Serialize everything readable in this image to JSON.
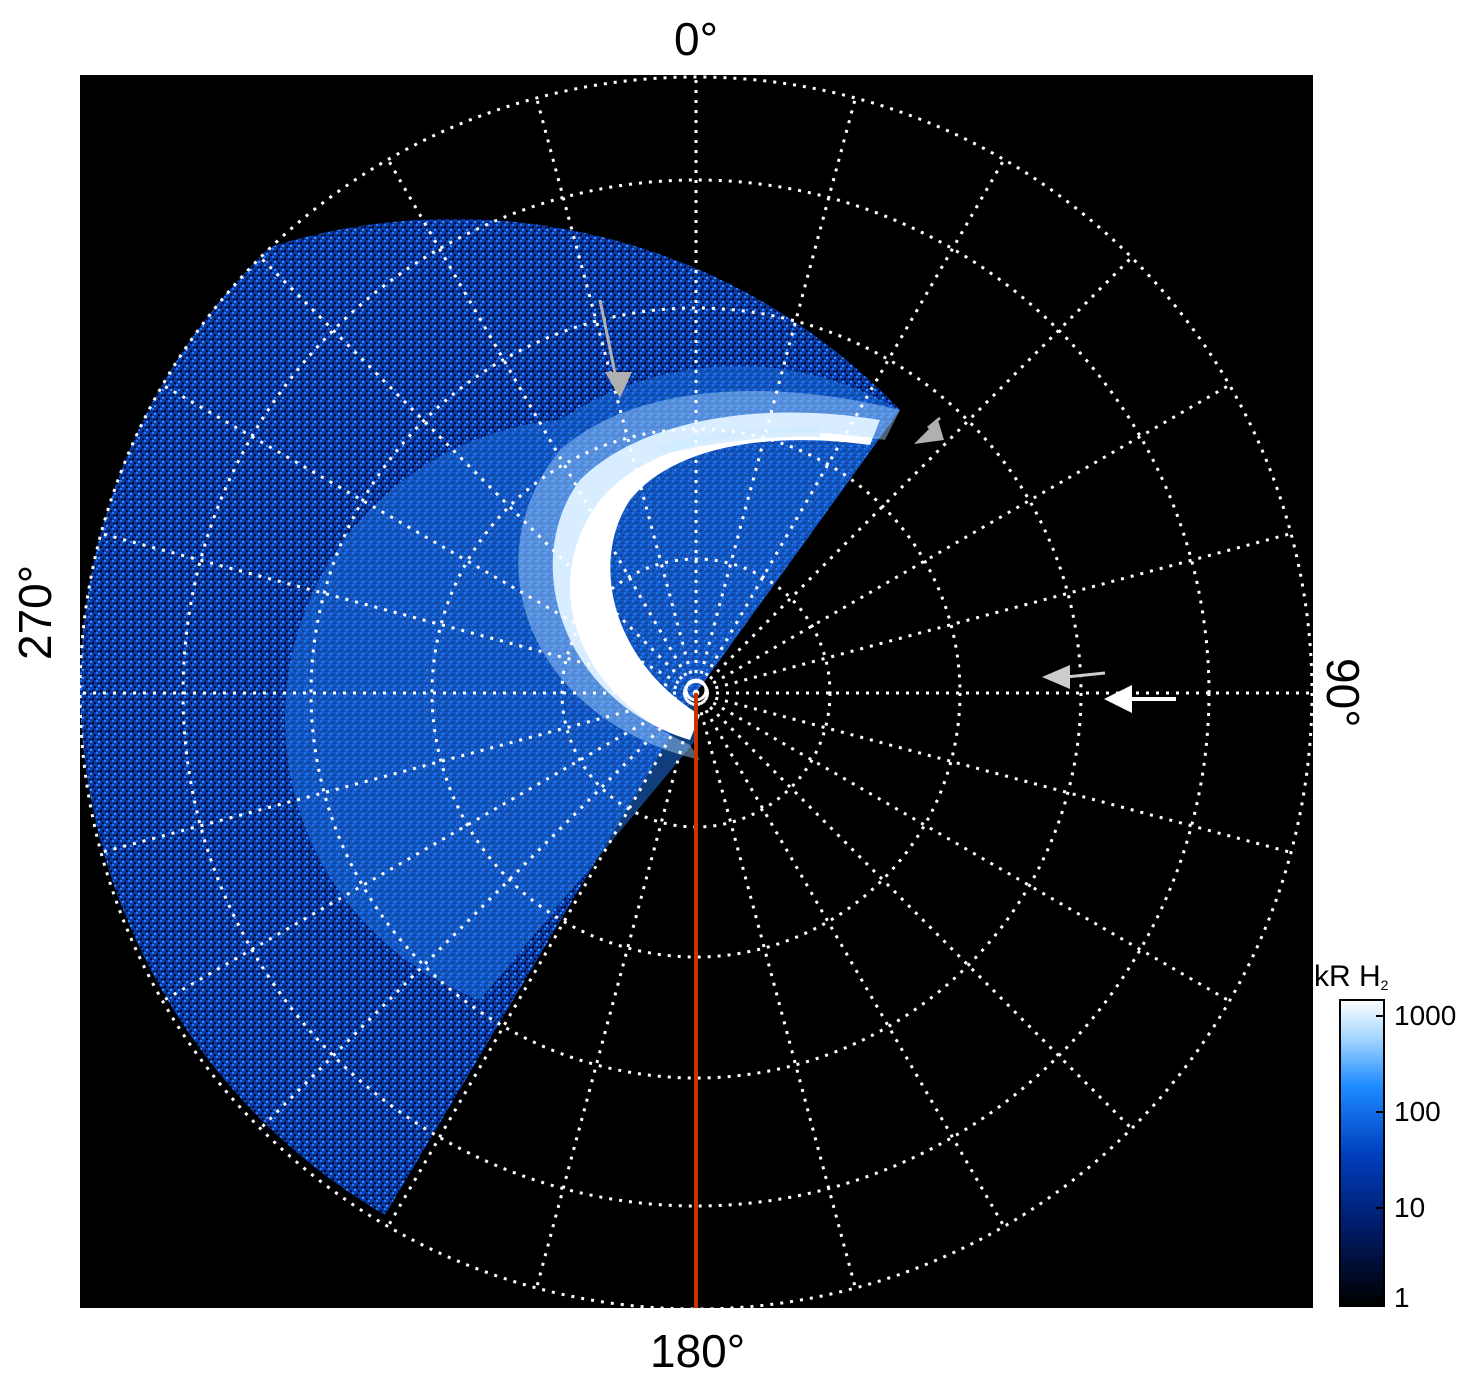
{
  "axis_labels": {
    "top": "0°",
    "right": "90°",
    "bottom": "180°",
    "left": "270°"
  },
  "colorbar": {
    "title": "kR H",
    "title_subscript": "2",
    "ticks": [
      "1000",
      "100",
      "10",
      "1"
    ],
    "colors": [
      "#000000",
      "#001a66",
      "#0040c0",
      "#1e8cff",
      "#a8d8ff",
      "#ffffff"
    ]
  },
  "colors": {
    "background": "#000000",
    "grid": "#ffffff",
    "meridian_line": "#cc3300",
    "arrow_grey": "#b0b0b0",
    "arrow_white": "#ffffff"
  }
}
